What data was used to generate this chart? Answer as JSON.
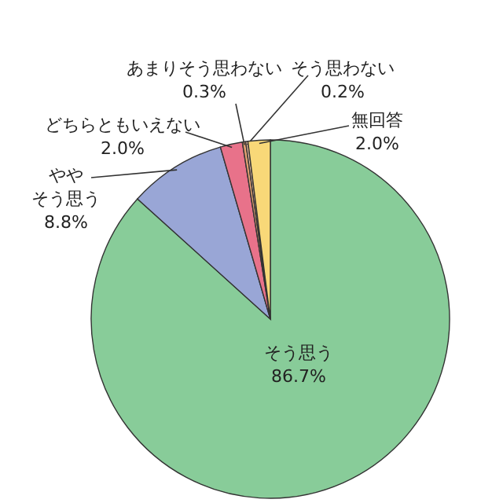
{
  "chart_data": {
    "type": "pie",
    "categories": [
      "そう思う",
      "ややそう思う",
      "どちらともいえない",
      "あまりそう思わない",
      "そう思わない",
      "無回答"
    ],
    "values": [
      86.7,
      8.8,
      2.0,
      0.3,
      0.2,
      2.0
    ],
    "value_labels": [
      "86.7%",
      "8.8%",
      "2.0%",
      "0.3%",
      "0.2%",
      "2.0%"
    ],
    "colors": [
      "#88cc99",
      "#99a6d6",
      "#e8728a",
      "#e0a070",
      "#f4c4a8",
      "#f8d878"
    ]
  }
}
